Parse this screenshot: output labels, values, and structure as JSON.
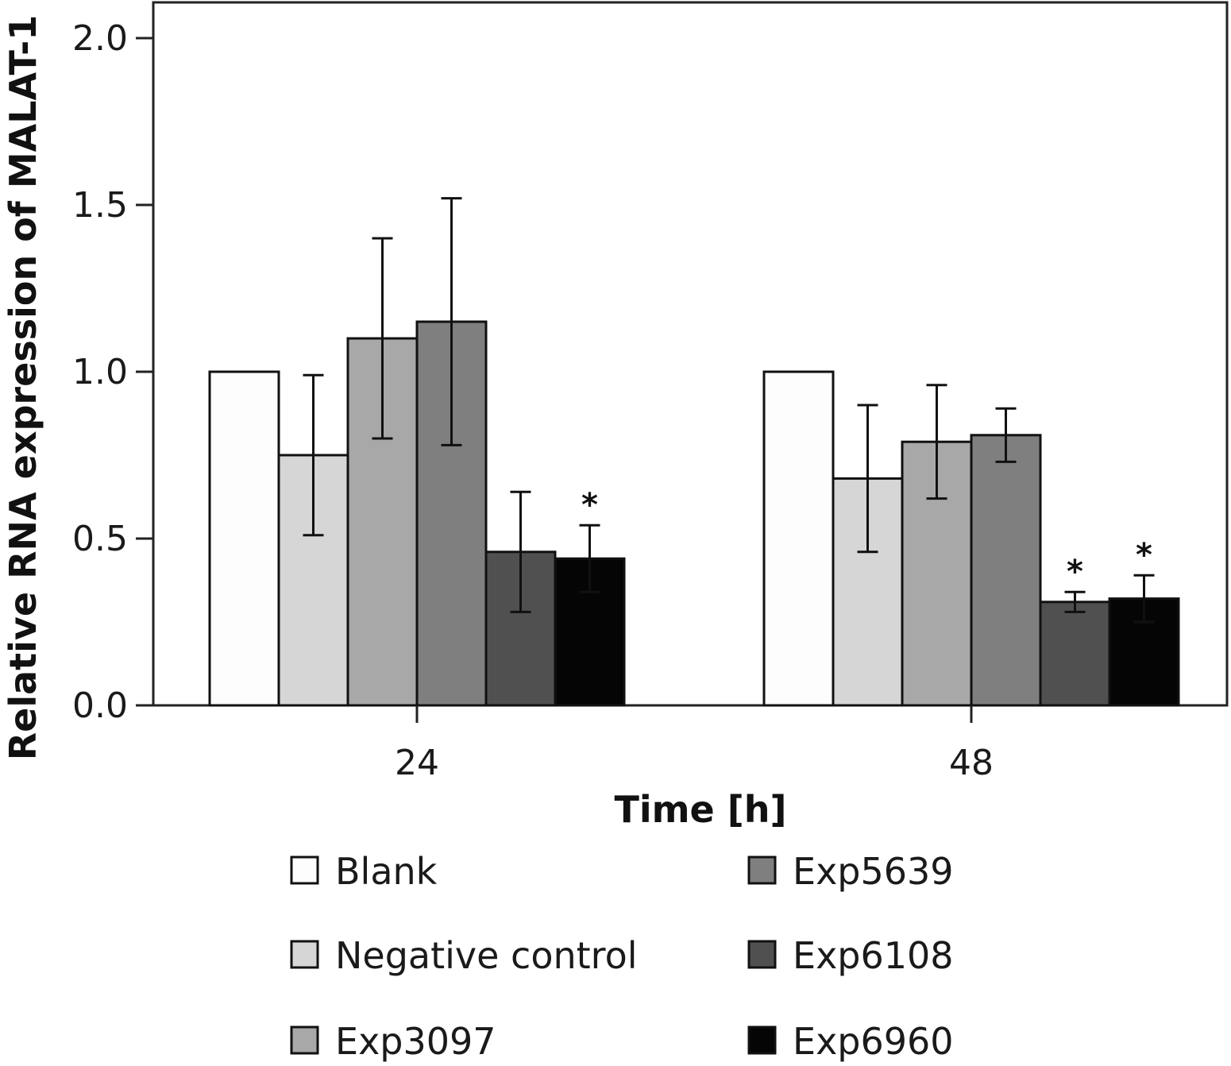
{
  "chart_data": {
    "type": "bar",
    "title": "",
    "xlabel": "Time [h]",
    "ylabel": "Relative RNA expression of MALAT-1",
    "categories": [
      "24",
      "48"
    ],
    "ylim": [
      0,
      2.0
    ],
    "yticks": [
      "0.0",
      "0.5",
      "1.0",
      "1.5",
      "2.0"
    ],
    "grid": false,
    "legend_position": "bottom",
    "series": [
      {
        "name": "Blank",
        "color": "#fdfdfd",
        "values": [
          1.0,
          1.0
        ],
        "error": [
          null,
          null
        ],
        "significant": [
          false,
          false
        ]
      },
      {
        "name": "Negative control",
        "color": "#d6d6d6",
        "values": [
          0.75,
          0.68
        ],
        "error": [
          0.24,
          0.22
        ],
        "significant": [
          false,
          false
        ]
      },
      {
        "name": "Exp3097",
        "color": "#a8a8a8",
        "values": [
          1.1,
          0.79
        ],
        "error": [
          0.3,
          0.17
        ],
        "significant": [
          false,
          false
        ]
      },
      {
        "name": "Exp5639",
        "color": "#7f7f7f",
        "values": [
          1.15,
          0.81
        ],
        "error": [
          0.37,
          0.08
        ],
        "significant": [
          false,
          false
        ]
      },
      {
        "name": "Exp6108",
        "color": "#505050",
        "values": [
          0.46,
          0.31
        ],
        "error": [
          0.18,
          0.03
        ],
        "significant": [
          false,
          true
        ]
      },
      {
        "name": "Exp6960",
        "color": "#050505",
        "values": [
          0.44,
          0.32
        ],
        "error": [
          0.1,
          0.07
        ],
        "significant": [
          true,
          true
        ]
      }
    ],
    "significance_marker": "*"
  }
}
